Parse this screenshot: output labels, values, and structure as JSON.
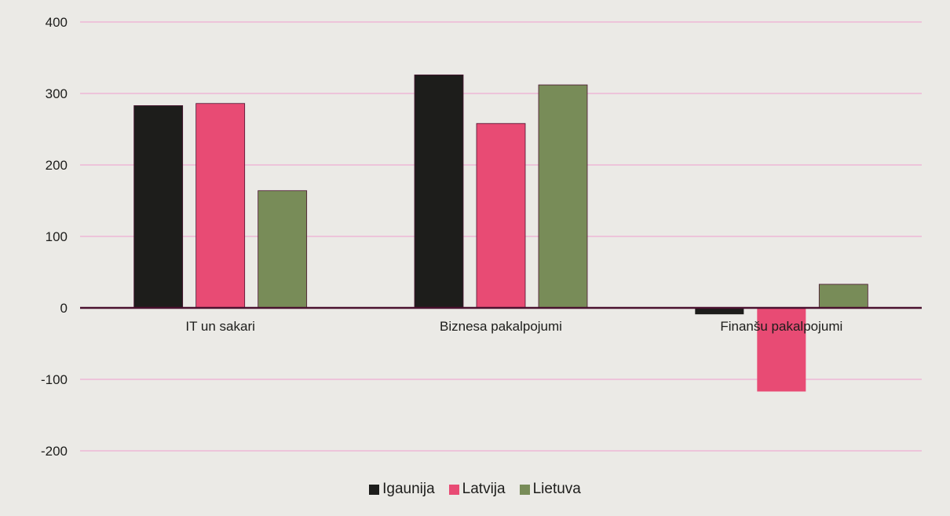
{
  "chart_data": {
    "type": "bar",
    "title": "",
    "xlabel": "",
    "ylabel": "",
    "categories": [
      "IT un sakari",
      "Biznesa pakalpojumi",
      "Finanšu pakalpojumi"
    ],
    "series": [
      {
        "name": "Igaunija",
        "color": "#1d1d1b",
        "values": [
          283,
          326,
          -9
        ]
      },
      {
        "name": "Latvija",
        "color": "#e84b74",
        "values": [
          286,
          258,
          -117
        ]
      },
      {
        "name": "Lietuva",
        "color": "#788c58",
        "values": [
          164,
          312,
          33
        ]
      }
    ],
    "ylim": [
      -200,
      400
    ],
    "yticks": [
      400,
      300,
      200,
      100,
      0,
      -100,
      -200
    ],
    "ytick_labels": [
      "400",
      "300",
      "200",
      "100",
      "0",
      "-100",
      "-200"
    ],
    "grid": true,
    "grid_color": "#eeb8d6",
    "zero_line_color": "#4a1230",
    "background": "#ebeae6",
    "legend_position": "bottom"
  }
}
